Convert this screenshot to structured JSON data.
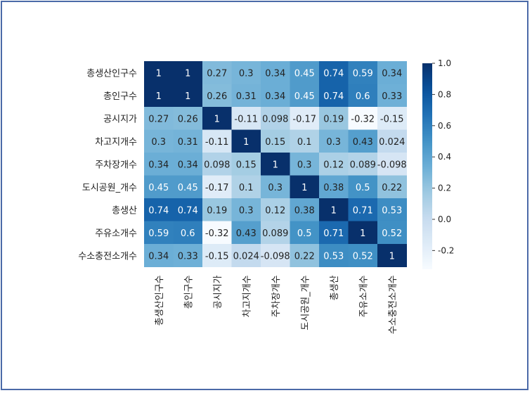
{
  "chart_data": {
    "type": "heatmap",
    "title": "",
    "xlabel": "",
    "ylabel": "",
    "rows": [
      "총생산인구수",
      "총인구수",
      "공시지가",
      "차고지개수",
      "주차장개수",
      "도시공원_개수",
      "총생산",
      "주유소개수",
      "수소충전소개수"
    ],
    "cols": [
      "총생산인구수",
      "총인구수",
      "공시지가",
      "차고지개수",
      "주차장개수",
      "도시공원_개수",
      "총생산",
      "주유소개수",
      "수소충전소개수"
    ],
    "values": [
      [
        1,
        1,
        0.27,
        0.3,
        0.34,
        0.45,
        0.74,
        0.59,
        0.34
      ],
      [
        1,
        1,
        0.26,
        0.31,
        0.34,
        0.45,
        0.74,
        0.6,
        0.33
      ],
      [
        0.27,
        0.26,
        1,
        -0.11,
        0.098,
        -0.17,
        0.19,
        -0.32,
        -0.15
      ],
      [
        0.3,
        0.31,
        -0.11,
        1,
        0.15,
        0.1,
        0.3,
        0.43,
        0.024
      ],
      [
        0.34,
        0.34,
        0.098,
        0.15,
        1,
        0.3,
        0.12,
        0.089,
        -0.098
      ],
      [
        0.45,
        0.45,
        -0.17,
        0.1,
        0.3,
        1,
        0.38,
        0.5,
        0.22
      ],
      [
        0.74,
        0.74,
        0.19,
        0.3,
        0.12,
        0.38,
        1,
        0.71,
        0.53
      ],
      [
        0.59,
        0.6,
        -0.32,
        0.43,
        0.089,
        0.5,
        0.71,
        1,
        0.52
      ],
      [
        0.34,
        0.33,
        -0.15,
        0.024,
        -0.098,
        0.22,
        0.53,
        0.52,
        1
      ]
    ],
    "value_labels": [
      [
        "1",
        "1",
        "0.27",
        "0.3",
        "0.34",
        "0.45",
        "0.74",
        "0.59",
        "0.34"
      ],
      [
        "1",
        "1",
        "0.26",
        "0.31",
        "0.34",
        "0.45",
        "0.74",
        "0.6",
        "0.33"
      ],
      [
        "0.27",
        "0.26",
        "1",
        "-0.11",
        "0.098",
        "-0.17",
        "0.19",
        "-0.32",
        "-0.15"
      ],
      [
        "0.3",
        "0.31",
        "-0.11",
        "1",
        "0.15",
        "0.1",
        "0.3",
        "0.43",
        "0.024"
      ],
      [
        "0.34",
        "0.34",
        "0.098",
        "0.15",
        "1",
        "0.3",
        "0.12",
        "0.089",
        "-0.098"
      ],
      [
        "0.45",
        "0.45",
        "-0.17",
        "0.1",
        "0.3",
        "1",
        "0.38",
        "0.5",
        "0.22"
      ],
      [
        "0.74",
        "0.74",
        "0.19",
        "0.3",
        "0.12",
        "0.38",
        "1",
        "0.71",
        "0.53"
      ],
      [
        "0.59",
        "0.6",
        "-0.32",
        "0.43",
        "0.089",
        "0.5",
        "0.71",
        "1",
        "0.52"
      ],
      [
        "0.34",
        "0.33",
        "-0.15",
        "0.024",
        "-0.098",
        "0.22",
        "0.53",
        "0.52",
        "1"
      ]
    ],
    "colormap": "Blues",
    "vmin": -0.32,
    "vmax": 1.0,
    "colorbar_ticks": [
      1.0,
      0.8,
      0.6,
      0.4,
      0.2,
      0.0,
      -0.2
    ],
    "colorbar_tick_labels": [
      "1.0",
      "0.8",
      "0.6",
      "0.4",
      "0.2",
      "0.0",
      "-0.2"
    ],
    "grid": false,
    "legend": "colorbar-right"
  },
  "colors": {
    "frame_border": "#4b6aa8",
    "text_dark": "#222222",
    "text_light": "#ffffff"
  }
}
